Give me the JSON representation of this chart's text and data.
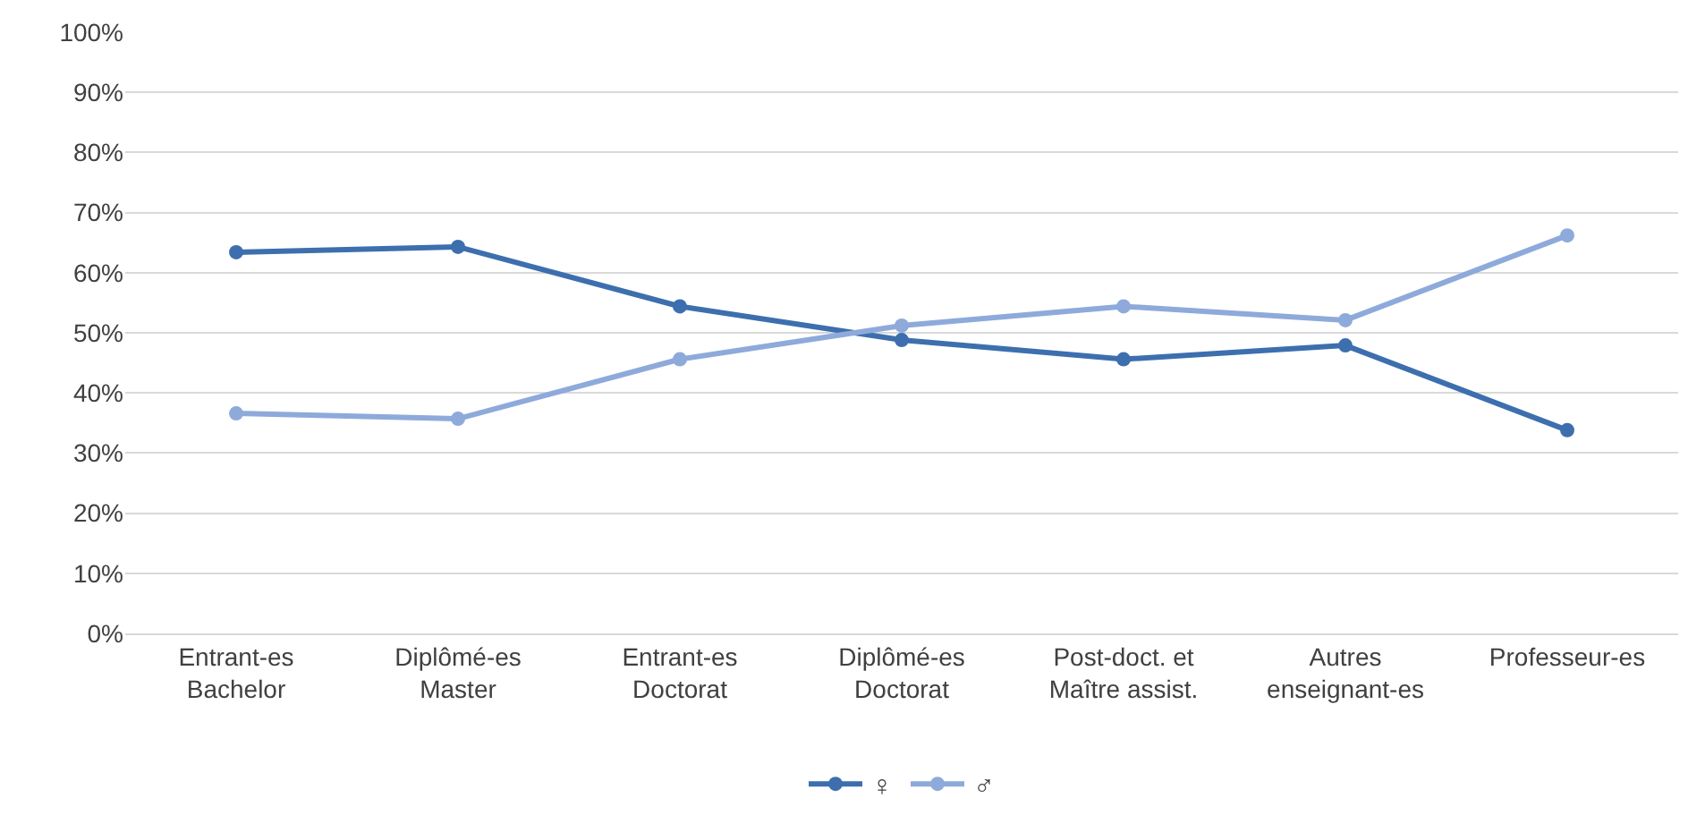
{
  "chart_data": {
    "type": "line",
    "categories": [
      "Entrant-es\nBachelor",
      "Diplômé-es\nMaster",
      "Entrant-es\nDoctorat",
      "Diplômé-es\nDoctorat",
      "Post-doct. et\nMaître assist.",
      "Autres\nenseignant-es",
      "Professeur-es"
    ],
    "series": [
      {
        "name": "♀",
        "color": "#3d6fae",
        "values": [
          63.4,
          64.3,
          54.4,
          48.8,
          45.6,
          47.9,
          33.8
        ]
      },
      {
        "name": "♂",
        "color": "#8eaadb",
        "values": [
          36.6,
          35.7,
          45.6,
          51.2,
          54.4,
          52.1,
          66.2
        ]
      }
    ],
    "ylim": [
      0,
      100
    ],
    "yticks": [
      {
        "value": 0,
        "label": "0%"
      },
      {
        "value": 10,
        "label": "10%"
      },
      {
        "value": 20,
        "label": "20%"
      },
      {
        "value": 30,
        "label": "30%"
      },
      {
        "value": 40,
        "label": "40%"
      },
      {
        "value": 50,
        "label": "50%"
      },
      {
        "value": 60,
        "label": "60%"
      },
      {
        "value": 70,
        "label": "70%"
      },
      {
        "value": 80,
        "label": "80%"
      },
      {
        "value": 90,
        "label": "90%"
      },
      {
        "value": 100,
        "label": "100%"
      }
    ],
    "grid": "y",
    "legend": "bottom",
    "marker": "circle",
    "line_style": "solid"
  }
}
